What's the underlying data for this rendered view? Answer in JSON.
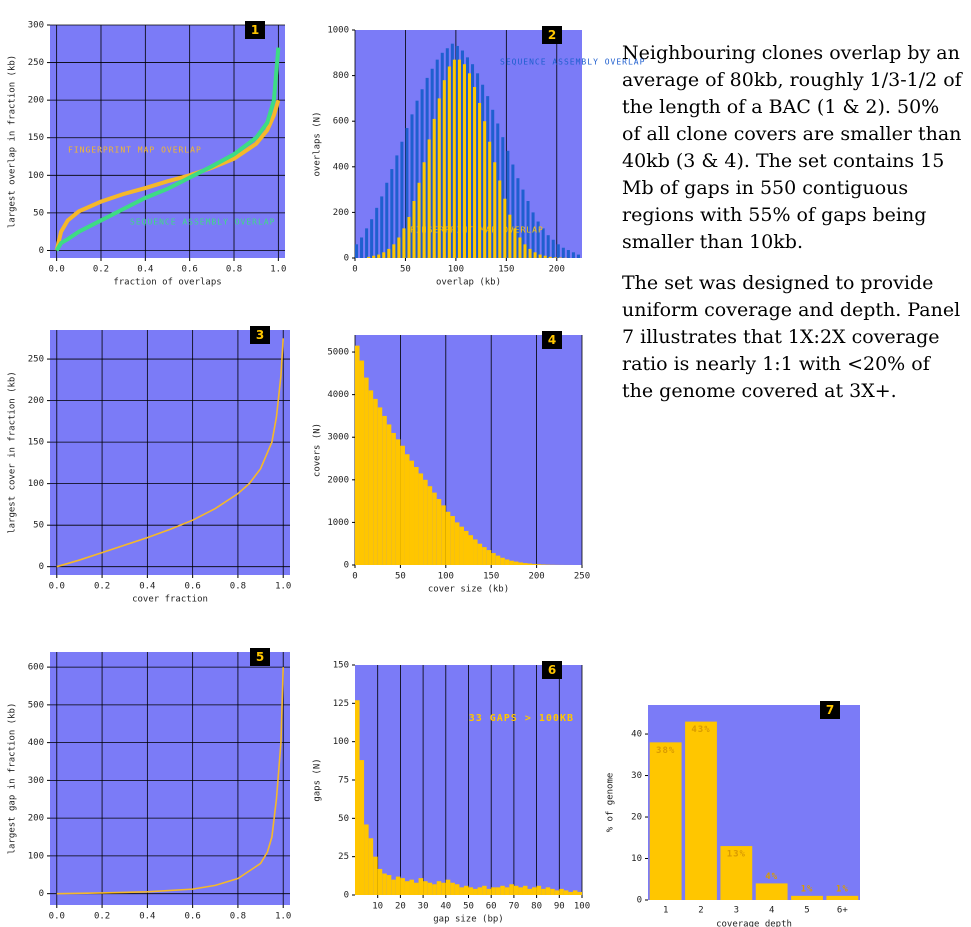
{
  "chart_data": [
    {
      "type": "line",
      "label": "1",
      "y_label": "largest overlap in fraction (kb)",
      "x_label": "fraction of overlaps",
      "x": [
        0,
        0.02,
        0.05,
        0.1,
        0.2,
        0.3,
        0.4,
        0.5,
        0.6,
        0.7,
        0.8,
        0.9,
        0.95,
        0.98,
        1
      ],
      "series": [
        {
          "name": "FINGERPRINT MAP OVERLAP",
          "color": "#f5b82a",
          "values": [
            0,
            25,
            40,
            52,
            65,
            75,
            83,
            92,
            100,
            110,
            122,
            142,
            160,
            180,
            200
          ]
        },
        {
          "name": "SEQUENCE ASSEMBLY OVERLAP",
          "color": "#3ddc84",
          "values": [
            0,
            10,
            15,
            25,
            40,
            55,
            70,
            82,
            97,
            112,
            128,
            150,
            170,
            200,
            270
          ]
        }
      ],
      "xlim": [
        -0.03,
        1.03
      ],
      "ylim": [
        -10,
        300
      ],
      "xticks": [
        {
          "value": 0,
          "label": "0.0"
        },
        0.2,
        0.4,
        0.6,
        0.8,
        {
          "value": 1,
          "label": "1.0"
        }
      ],
      "yticks": [
        0,
        50,
        100,
        150,
        200,
        250,
        300
      ],
      "grid": "both"
    },
    {
      "type": "histogram",
      "label": "2",
      "y_label": "overlaps (N)",
      "x_label": "overlap (kb)",
      "bins": [
        0,
        5,
        10,
        15,
        20,
        25,
        30,
        35,
        40,
        45,
        50,
        55,
        60,
        65,
        70,
        75,
        80,
        85,
        90,
        95,
        100,
        105,
        110,
        115,
        120,
        125,
        130,
        135,
        140,
        145,
        150,
        155,
        160,
        165,
        170,
        175,
        180,
        185,
        190,
        195,
        200,
        205,
        210,
        215,
        220,
        225
      ],
      "series": [
        {
          "name": "SEQUENCE ASSEMBLY OVERLAP",
          "color": "#1f5fcf",
          "values": [
            60,
            90,
            130,
            170,
            220,
            270,
            330,
            390,
            450,
            510,
            570,
            630,
            690,
            740,
            790,
            830,
            870,
            900,
            920,
            940,
            930,
            910,
            880,
            850,
            810,
            760,
            710,
            650,
            590,
            530,
            470,
            410,
            350,
            300,
            250,
            200,
            160,
            130,
            100,
            80,
            60,
            45,
            35,
            25,
            15
          ]
        },
        {
          "name": "FINGERPRINT MAP OVERLAP",
          "color": "#ffc600",
          "values": [
            0,
            0,
            5,
            10,
            15,
            25,
            40,
            60,
            90,
            130,
            180,
            250,
            330,
            420,
            520,
            610,
            700,
            780,
            840,
            870,
            870,
            850,
            810,
            750,
            680,
            600,
            510,
            420,
            340,
            260,
            190,
            130,
            90,
            60,
            40,
            25,
            15,
            10,
            5,
            3,
            2,
            1,
            0,
            0,
            0
          ]
        }
      ],
      "xlim": [
        0,
        225
      ],
      "ylim": [
        0,
        1000
      ],
      "xticks": [
        0,
        50,
        100,
        150,
        200
      ],
      "yticks": [
        0,
        200,
        400,
        600,
        800,
        1000
      ],
      "grid": "x"
    },
    {
      "type": "line",
      "label": "3",
      "y_label": "largest cover in fraction (kb)",
      "x_label": "cover fraction",
      "x": [
        0,
        0.1,
        0.2,
        0.3,
        0.4,
        0.5,
        0.6,
        0.7,
        0.8,
        0.85,
        0.9,
        0.95,
        0.97,
        0.99,
        1
      ],
      "series": [
        {
          "color": "#f5b82a",
          "values": [
            0,
            8,
            17,
            26,
            35,
            45,
            56,
            70,
            88,
            100,
            118,
            150,
            180,
            230,
            275
          ]
        }
      ],
      "xlim": [
        -0.03,
        1.03
      ],
      "ylim": [
        -10,
        285
      ],
      "xticks": [
        {
          "value": 0,
          "label": "0.0"
        },
        0.2,
        0.4,
        0.6,
        0.8,
        {
          "value": 1,
          "label": "1.0"
        }
      ],
      "yticks": [
        0,
        50,
        100,
        150,
        200,
        250
      ],
      "grid": "both"
    },
    {
      "type": "histogram",
      "label": "4",
      "y_label": "covers (N)",
      "x_label": "cover size (kb)",
      "bins": [
        0,
        5,
        10,
        15,
        20,
        25,
        30,
        35,
        40,
        45,
        50,
        55,
        60,
        65,
        70,
        75,
        80,
        85,
        90,
        95,
        100,
        105,
        110,
        115,
        120,
        125,
        130,
        135,
        140,
        145,
        150,
        155,
        160,
        165,
        170,
        175,
        180,
        185,
        190,
        195,
        200,
        205,
        210,
        215,
        220,
        225,
        230,
        235,
        240,
        245,
        250
      ],
      "series": [
        {
          "color": "#ffc600",
          "values": [
            5150,
            4800,
            4400,
            4100,
            3900,
            3700,
            3500,
            3300,
            3100,
            2950,
            2800,
            2600,
            2450,
            2300,
            2150,
            2000,
            1850,
            1700,
            1550,
            1400,
            1250,
            1150,
            1000,
            900,
            800,
            700,
            600,
            500,
            420,
            350,
            280,
            220,
            170,
            130,
            100,
            80,
            60,
            45,
            35,
            25,
            18,
            12,
            8,
            5,
            3,
            2,
            1,
            1,
            0,
            0
          ]
        }
      ],
      "xlim": [
        0,
        250
      ],
      "ylim": [
        0,
        5400
      ],
      "xticks": [
        0,
        50,
        100,
        150,
        200,
        250
      ],
      "yticks": [
        0,
        1000,
        2000,
        3000,
        4000,
        5000
      ],
      "grid": "x"
    },
    {
      "type": "line",
      "label": "5",
      "y_label": "largest gap in fraction (kb)",
      "x": [
        0,
        0.2,
        0.4,
        0.6,
        0.7,
        0.8,
        0.85,
        0.9,
        0.93,
        0.95,
        0.97,
        0.99,
        1
      ],
      "series": [
        {
          "color": "#f5b82a",
          "values": [
            0,
            2,
            5,
            12,
            22,
            40,
            60,
            80,
            110,
            150,
            250,
            400,
            600
          ]
        }
      ],
      "xlim": [
        -0.03,
        1.03
      ],
      "ylim": [
        -30,
        640
      ],
      "xticks": [
        {
          "value": 0,
          "label": "0.0"
        },
        0.2,
        0.4,
        0.6,
        0.8,
        {
          "value": 1,
          "label": "1.0"
        }
      ],
      "yticks": [
        0,
        100,
        200,
        300,
        400,
        500,
        600
      ],
      "grid": "both"
    },
    {
      "type": "histogram",
      "label": "6",
      "y_label": "gaps (N)",
      "x_label": "gap size (bp)",
      "annotation": "33 GAPS > 100KB",
      "bins": [
        0,
        2,
        4,
        6,
        8,
        10,
        12,
        14,
        16,
        18,
        20,
        22,
        24,
        26,
        28,
        30,
        32,
        34,
        36,
        38,
        40,
        42,
        44,
        46,
        48,
        50,
        52,
        54,
        56,
        58,
        60,
        62,
        64,
        66,
        68,
        70,
        72,
        74,
        76,
        78,
        80,
        82,
        84,
        86,
        88,
        90,
        92,
        94,
        96,
        98,
        100
      ],
      "series": [
        {
          "color": "#ffc600",
          "values": [
            127,
            88,
            46,
            37,
            25,
            17,
            14,
            13,
            10,
            12,
            11,
            9,
            10,
            8,
            11,
            9,
            8,
            7,
            9,
            8,
            10,
            8,
            7,
            5,
            6,
            5,
            4,
            5,
            6,
            4,
            5,
            5,
            6,
            5,
            7,
            6,
            5,
            6,
            4,
            5,
            6,
            4,
            5,
            4,
            3,
            4,
            3,
            2,
            3,
            2
          ]
        }
      ],
      "xlim": [
        0,
        100
      ],
      "ylim": [
        0,
        150
      ],
      "xticks": [
        10,
        20,
        30,
        40,
        50,
        60,
        70,
        80,
        90,
        100
      ],
      "yticks": [
        0,
        25,
        50,
        75,
        100,
        125,
        150
      ],
      "grid": "x"
    },
    {
      "type": "bar",
      "label": "7",
      "y_label": "% of genome",
      "x_label": "coverage depth",
      "categories": [
        "1",
        "2",
        "3",
        "4",
        "5",
        "6+"
      ],
      "values": [
        38,
        43,
        13,
        4,
        1,
        1
      ],
      "value_labels": [
        "38%",
        "43%",
        "13%",
        "4%",
        "1%",
        "1%"
      ],
      "color": "#ffc600",
      "ylim": [
        0,
        47
      ],
      "yticks": [
        0,
        10,
        20,
        30,
        40
      ],
      "grid": "none"
    }
  ],
  "text": {
    "paragraphs": [
      "Neighbouring clones overlap by an average of 80kb, roughly 1/3-1/2 of the length of a BAC (1 & 2). 50% of all clone covers are smaller than 40kb (3 & 4). The set contains 15 Mb of gaps in 550 contiguous regions with 55% of gaps being smaller than 10kb.",
      "The set was designed to provide uniform coverage and depth. Panel 7 illustrates that 1X:2X coverage ratio is nearly 1:1 with <20% of the genome covered at 3X+."
    ]
  }
}
